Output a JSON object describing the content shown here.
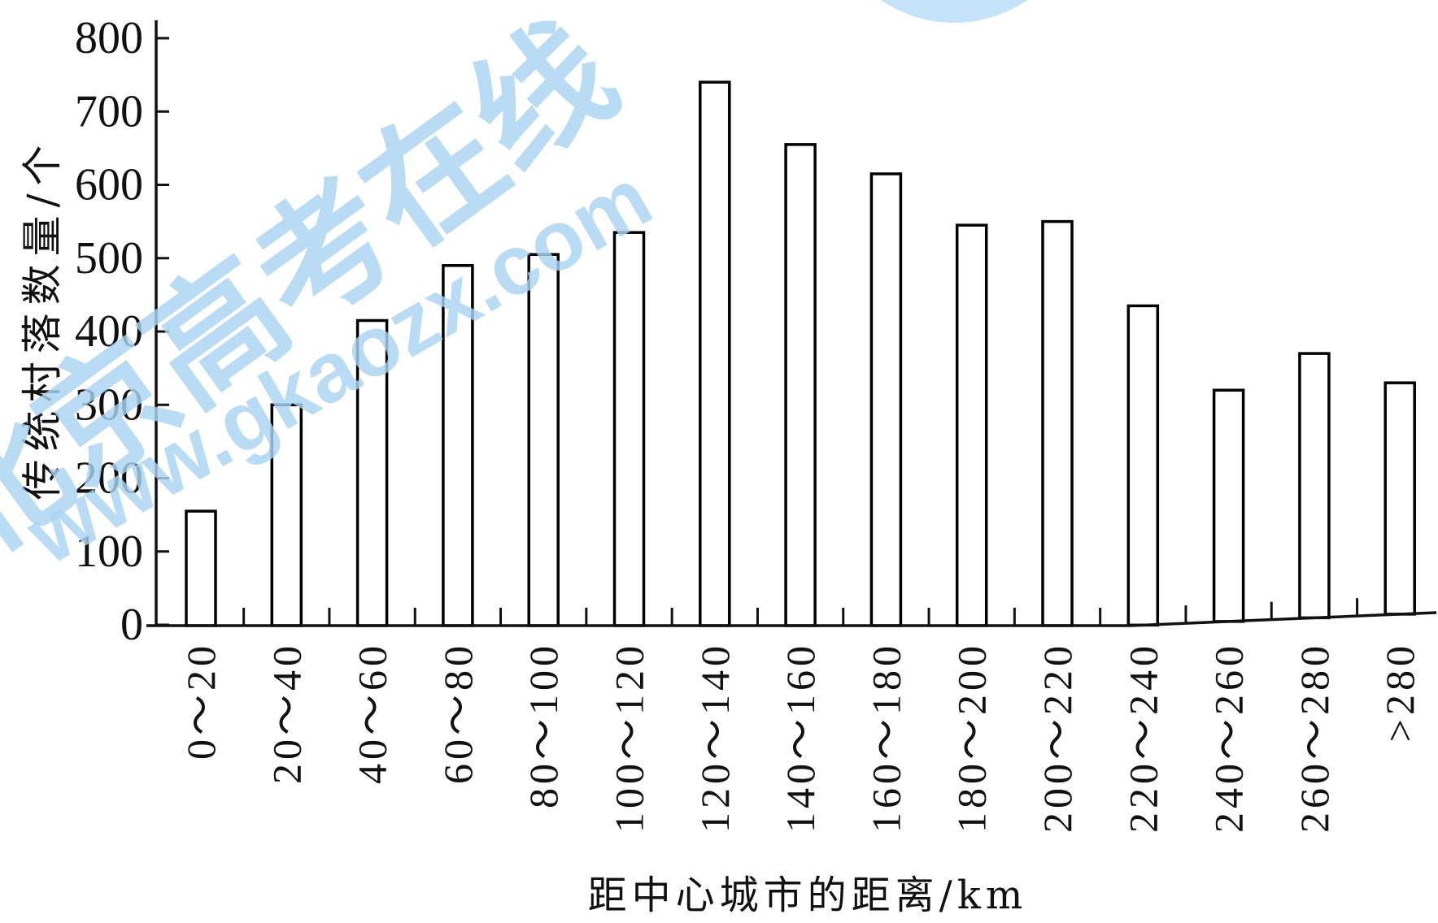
{
  "watermark": {
    "text_cn": "北京高考在线",
    "text_url": "www.gkaozx.com",
    "color": "#a9d4f2",
    "circle_color": "#c4e2f8"
  },
  "chart_data": {
    "type": "bar",
    "title": "",
    "xlabel": "距中心城市的距离/km",
    "ylabel": "传统村落数量/个",
    "categories": [
      "0～20",
      "20～40",
      "40～60",
      "60～80",
      "80～100",
      "100～120",
      "120～140",
      "140～160",
      "160～180",
      "180～200",
      "200～220",
      "220～240",
      "240～260",
      "260～280",
      ">280"
    ],
    "values": [
      155,
      300,
      415,
      490,
      505,
      535,
      740,
      655,
      615,
      545,
      550,
      435,
      320,
      370,
      330
    ],
    "ylim": [
      0,
      800
    ],
    "yticks": [
      0,
      100,
      200,
      300,
      400,
      500,
      600,
      700,
      800
    ],
    "grid": false,
    "bar_fill": "#ffffff",
    "bar_stroke": "#000000"
  }
}
